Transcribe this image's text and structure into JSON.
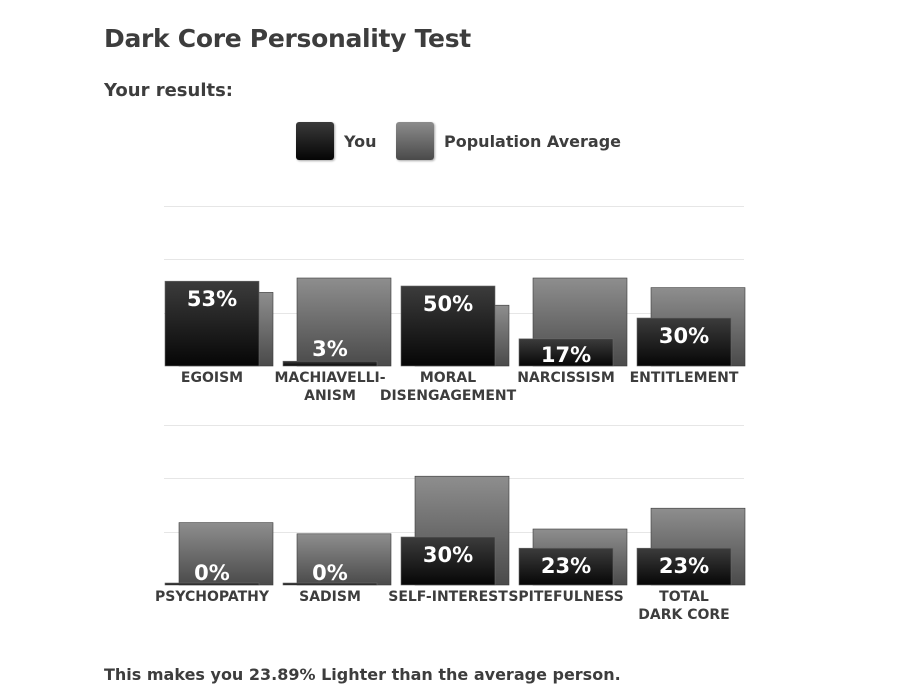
{
  "page": {
    "title": "Dark Core Personality Test",
    "subtitle": "Your results:",
    "footer": "This makes you 23.89% Lighter than the average person."
  },
  "legend": [
    {
      "label": "You",
      "color": "#111111"
    },
    {
      "label": "Population Average",
      "color": "#6a6a6a"
    }
  ],
  "chart_data": [
    {
      "type": "bar",
      "categories": [
        [
          "EGOISM"
        ],
        [
          "MACHIAVELLI-",
          "ANISM"
        ],
        [
          "MORAL",
          "DISENGAGEMENT"
        ],
        [
          "NARCISSISM"
        ],
        [
          "ENTITLEMENT"
        ]
      ],
      "ylim": [
        0,
        100
      ],
      "grid": true,
      "legend": "top",
      "series": [
        {
          "name": "You",
          "values": [
            53,
            3,
            50,
            17,
            30
          ],
          "labels": [
            "53%",
            "3%",
            "50%",
            "17%",
            "30%"
          ]
        },
        {
          "name": "Population Average",
          "values": [
            46,
            55,
            38,
            55,
            49
          ]
        }
      ]
    },
    {
      "type": "bar",
      "categories": [
        [
          "PSYCHOPATHY"
        ],
        [
          "SADISM"
        ],
        [
          "SELF-INTEREST"
        ],
        [
          "SPITEFULNESS"
        ],
        [
          "TOTAL",
          "DARK CORE"
        ]
      ],
      "ylim": [
        0,
        100
      ],
      "grid": true,
      "legend": "top",
      "series": [
        {
          "name": "You",
          "values": [
            0,
            0,
            30,
            23,
            23
          ],
          "labels": [
            "0%",
            "0%",
            "30%",
            "23%",
            "23%"
          ]
        },
        {
          "name": "Population Average",
          "values": [
            39,
            32,
            68,
            35,
            48
          ]
        }
      ]
    }
  ]
}
